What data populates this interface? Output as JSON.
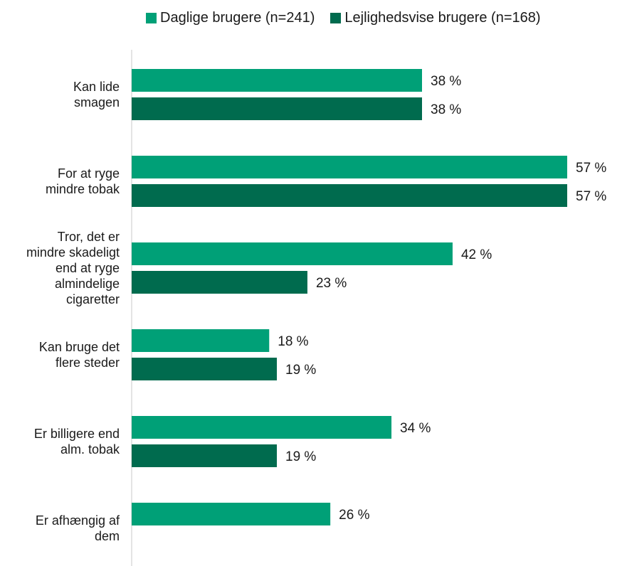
{
  "chart_data": {
    "type": "bar",
    "orientation": "horizontal",
    "categories": [
      [
        "Kan lide",
        "smagen"
      ],
      [
        "For at ryge",
        "mindre tobak"
      ],
      [
        "Tror, det er",
        "mindre skadeligt",
        "end at ryge",
        "almindelige",
        "cigaretter"
      ],
      [
        "Kan bruge det",
        "flere steder"
      ],
      [
        "Er billigere end",
        "alm. tobak"
      ],
      [
        "Er afhængig af",
        "dem"
      ]
    ],
    "series": [
      {
        "name": "Daglige brugere (n=241)",
        "color": "#00a077",
        "values": [
          38,
          57,
          42,
          18,
          34,
          26
        ],
        "labels": [
          "38 %",
          "57 %",
          "42 %",
          "18 %",
          "34 %",
          "26 %"
        ]
      },
      {
        "name": "Lejlighedsvise brugere (n=168)",
        "color": "#006b4e",
        "values": [
          38,
          57,
          23,
          19,
          19,
          null
        ],
        "labels": [
          "38 %",
          "57 %",
          "23 %",
          "19 %",
          "19 %",
          null
        ]
      }
    ],
    "xlim": [
      0,
      60
    ],
    "grid": false,
    "legend_position": "top"
  }
}
